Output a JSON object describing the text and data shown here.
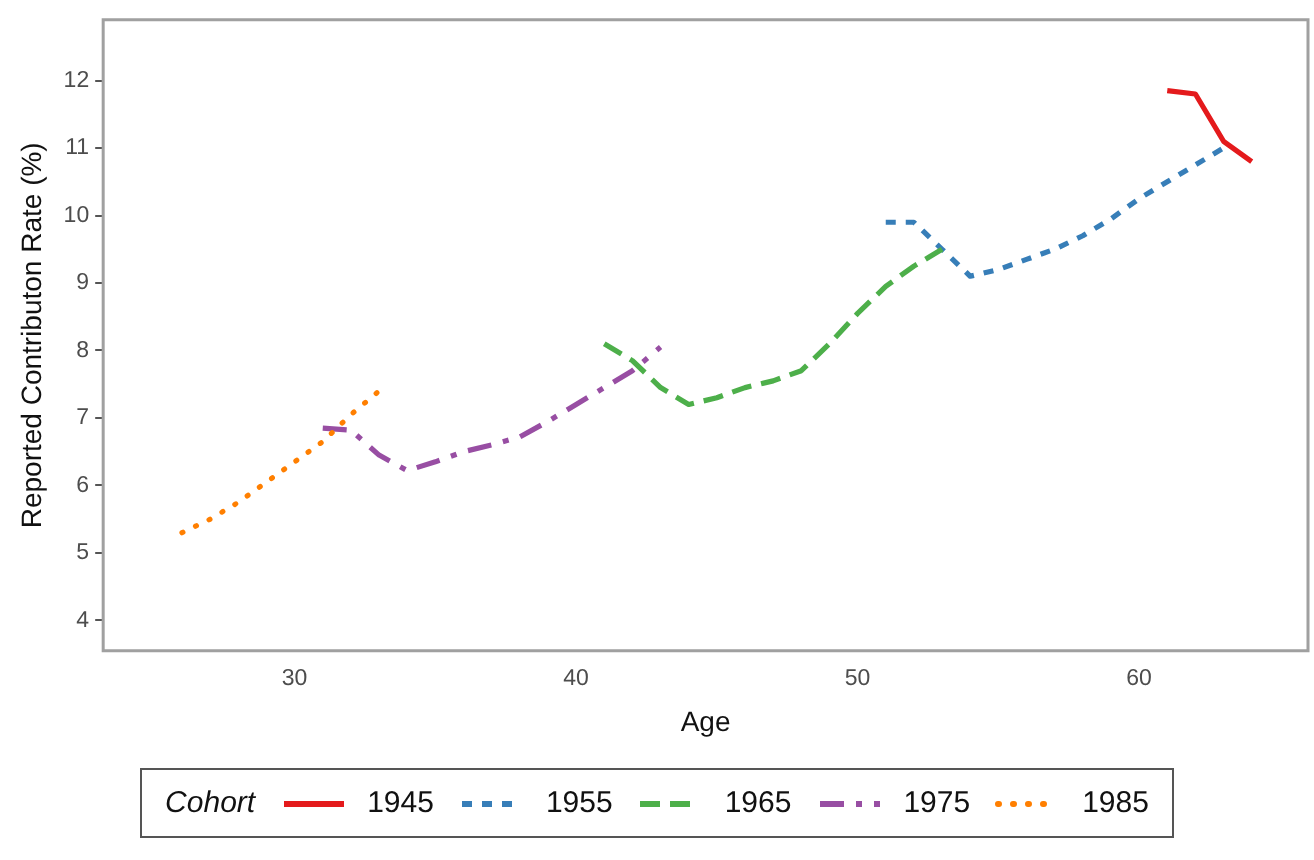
{
  "chart_data": {
    "type": "line",
    "xlabel": "Age",
    "ylabel": "Reported Contributon Rate (%)",
    "legend_title": "Cohort",
    "legend": "bottom",
    "grid": false,
    "xlim": [
      23.2,
      66
    ],
    "xticks": [
      30,
      40,
      50,
      60
    ],
    "ylim": [
      3.55,
      12.9
    ],
    "yticks": [
      4,
      5,
      6,
      7,
      8,
      9,
      10,
      11,
      12
    ],
    "series": [
      {
        "name": "1945",
        "color": "#e41a1c",
        "line_style": "solid",
        "x": [
          61,
          62,
          63,
          64
        ],
        "values": [
          11.85,
          11.8,
          11.1,
          10.8
        ]
      },
      {
        "name": "1955",
        "color": "#377eb8",
        "line_style": "dashed",
        "x": [
          51,
          52,
          53,
          54,
          55,
          56,
          57,
          58,
          59,
          60,
          61,
          62,
          63
        ],
        "values": [
          9.9,
          9.9,
          9.5,
          9.1,
          9.2,
          9.35,
          9.5,
          9.7,
          9.95,
          10.25,
          10.5,
          10.75,
          11.0
        ]
      },
      {
        "name": "1965",
        "color": "#4daf4a",
        "line_style": "dashed",
        "x": [
          41,
          42,
          43,
          44,
          45,
          46,
          47,
          48,
          49,
          50,
          51,
          52,
          53
        ],
        "values": [
          8.1,
          7.85,
          7.45,
          7.2,
          7.3,
          7.45,
          7.55,
          7.7,
          8.1,
          8.55,
          8.95,
          9.25,
          9.5
        ]
      },
      {
        "name": "1975",
        "color": "#984ea3",
        "line_style": "dashed",
        "x": [
          31,
          32,
          33,
          34,
          35,
          36,
          37,
          38,
          39,
          40,
          41,
          42,
          43
        ],
        "values": [
          6.85,
          6.82,
          6.45,
          6.22,
          6.35,
          6.5,
          6.6,
          6.72,
          6.95,
          7.2,
          7.45,
          7.7,
          8.05
        ]
      },
      {
        "name": "1985",
        "color": "#ff7f00",
        "line_style": "dotted",
        "x": [
          26,
          27,
          28,
          29,
          30,
          31,
          32,
          33
        ],
        "values": [
          5.3,
          5.5,
          5.75,
          6.05,
          6.35,
          6.65,
          7.05,
          7.4
        ]
      }
    ]
  }
}
